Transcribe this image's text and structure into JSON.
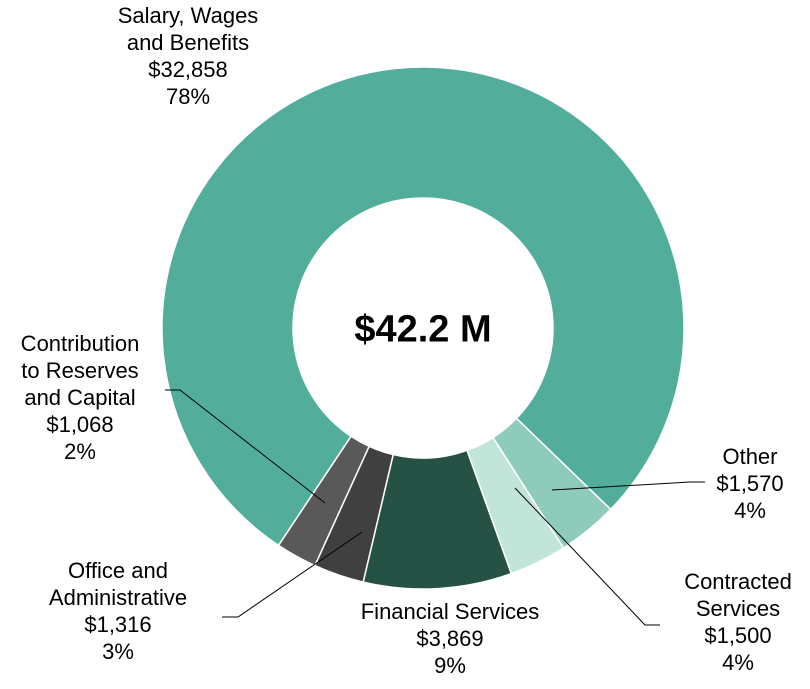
{
  "chart_data": {
    "type": "donut",
    "center_label": "$42.2 M",
    "categories": [
      "Salary, Wages\nand Benefits",
      "Other",
      "Contracted\nServices",
      "Financial Services",
      "Office and\nAdministrative",
      "Contribution\nto Reserves\nand Capital"
    ],
    "values": [
      32858,
      1570,
      1500,
      3869,
      1316,
      1068
    ],
    "value_labels": [
      "$32,858",
      "$1,570",
      "$1,500",
      "$3,869",
      "$1,316",
      "$1,068"
    ],
    "percents": [
      78,
      4,
      4,
      9,
      3,
      2
    ],
    "percent_labels": [
      "78%",
      "4%",
      "4%",
      "9%",
      "3%",
      "2%"
    ],
    "colors": [
      "#52ae9a",
      "#8fcbbb",
      "#c2e5da",
      "#265245",
      "#404040",
      "#595959"
    ]
  }
}
